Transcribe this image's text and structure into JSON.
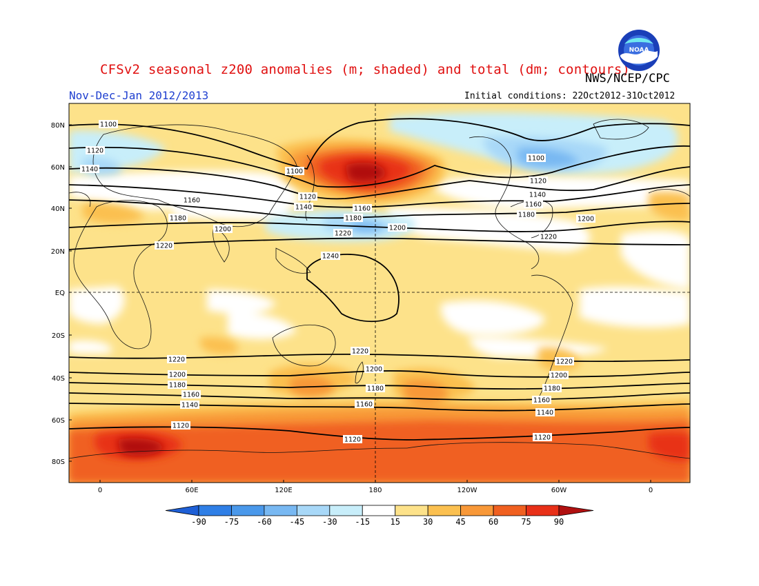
{
  "header": {
    "title": "CFSv2 seasonal z200 anomalies (m; shaded) and total (dm; contours)",
    "agency": "NWS/NCEP/CPC",
    "period": "Nov-Dec-Jan 2012/2013",
    "initial_conditions": "Initial conditions: 22Oct2012-31Oct2012",
    "logo_text": "NOAA"
  },
  "axes": {
    "lat_labels": [
      "80N",
      "60N",
      "40N",
      "20N",
      "EQ",
      "20S",
      "40S",
      "60S",
      "80S"
    ],
    "lon_labels": [
      "0",
      "60E",
      "120E",
      "180",
      "120W",
      "60W",
      "0"
    ]
  },
  "colorbar": {
    "labels": [
      "-90",
      "-75",
      "-60",
      "-45",
      "-30",
      "-15",
      "15",
      "30",
      "45",
      "60",
      "75",
      "90"
    ],
    "colors": [
      "#1e5fd6",
      "#2f7fe6",
      "#4a98ea",
      "#78b8f2",
      "#a8d8f8",
      "#c8eefa",
      "#ffffff",
      "#fde28a",
      "#fbc050",
      "#f89838",
      "#f06020",
      "#e83018",
      "#b01010"
    ]
  },
  "contour_labels": [
    {
      "text": "1100",
      "key": "n1100"
    },
    {
      "text": "1120",
      "key": "n1120"
    },
    {
      "text": "1140",
      "key": "n1140"
    },
    {
      "text": "1160",
      "key": "n1160"
    },
    {
      "text": "1180",
      "key": "n1180"
    },
    {
      "text": "1200",
      "key": "n1200"
    },
    {
      "text": "1220",
      "key": "n1220"
    },
    {
      "text": "1240",
      "key": "eq1240"
    }
  ],
  "contour_values_dm": [
    "1100",
    "1120",
    "1140",
    "1160",
    "1180",
    "1200",
    "1220",
    "1240"
  ]
}
